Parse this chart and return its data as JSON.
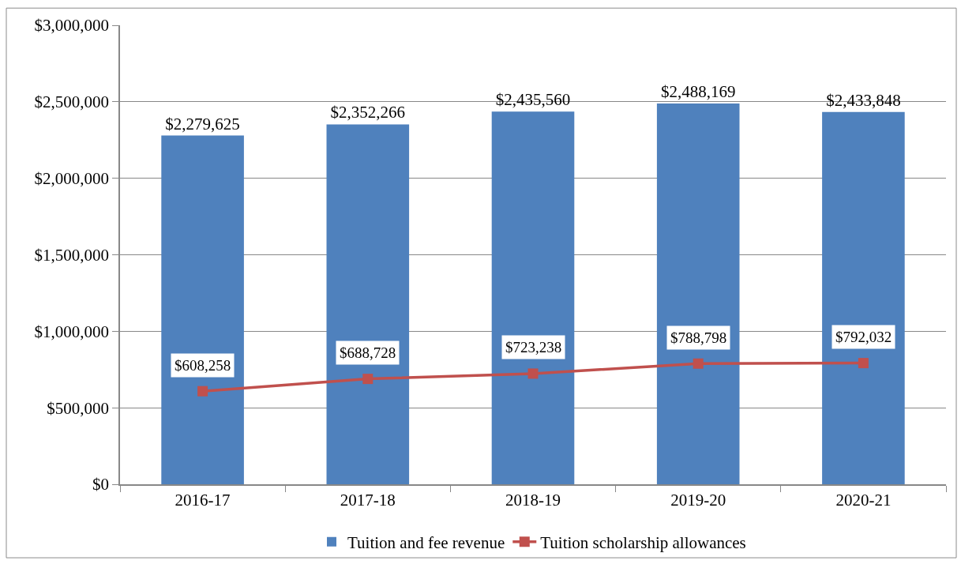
{
  "chart_data": {
    "type": "bar",
    "categories": [
      "2016-17",
      "2017-18",
      "2018-19",
      "2019-20",
      "2020-21"
    ],
    "series": [
      {
        "name": "Tuition and fee revenue",
        "color": "#4f81bd",
        "values": [
          2279625,
          2352266,
          2435560,
          2488169,
          2433848
        ],
        "value_labels": [
          "$2,279,625",
          "$2,352,266",
          "$2,435,560",
          "$2,488,169",
          "$2,433,848"
        ]
      },
      {
        "name": "Tuition scholarship allowances",
        "type": "line",
        "color": "#c0504d",
        "marker": "square",
        "line_style": "solid",
        "values": [
          608258,
          688728,
          723238,
          788798,
          792032
        ],
        "value_labels": [
          "$608,258",
          "$688,728",
          "$723,238",
          "$788,798",
          "$792,032"
        ]
      }
    ],
    "ylim": [
      0,
      3000000
    ],
    "yticks": [
      {
        "value": 0,
        "label": "$0"
      },
      {
        "value": 500000,
        "label": "$500,000"
      },
      {
        "value": 1000000,
        "label": "$1,000,000"
      },
      {
        "value": 1500000,
        "label": "$1,500,000"
      },
      {
        "value": 2000000,
        "label": "$2,000,000"
      },
      {
        "value": 2500000,
        "label": "$2,500,000"
      },
      {
        "value": 3000000,
        "label": "$3,000,000"
      }
    ],
    "grid": "y",
    "legend": "bottom"
  }
}
